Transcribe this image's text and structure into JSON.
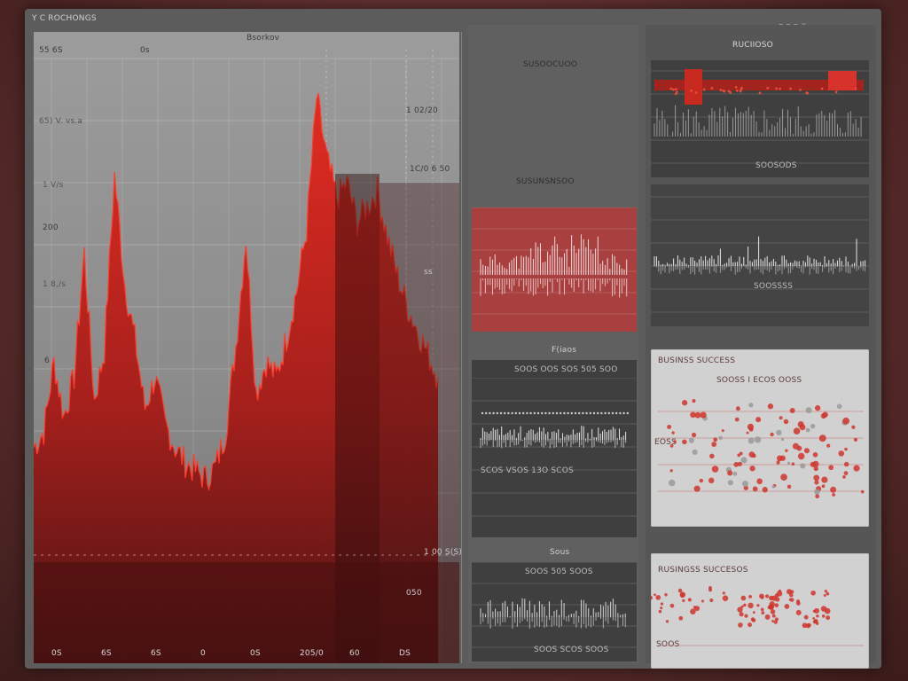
{
  "window": {
    "title": "Y C ROCHONGS",
    "tabs": [
      "Bsorkov",
      "Rucilnso"
    ]
  },
  "main_chart": {
    "left_labels": [
      "55 6S",
      "0s",
      "65) V. vs.a",
      "1 V/s",
      "200",
      "1 8,/s",
      "6"
    ],
    "right_labels": [
      "1 02/20",
      "1C/0 6 50",
      "ss",
      "1 00 S(S)",
      "050"
    ],
    "bottom_labels": [
      "0S",
      "6S",
      "6S",
      "0",
      "0S",
      "205/0",
      "60",
      "DS"
    ]
  },
  "chart_data": {
    "type": "area",
    "title": "Bsorkov",
    "xlabel": "",
    "ylabel": "",
    "x": [
      0,
      1,
      2,
      3,
      4,
      5,
      6,
      7,
      8,
      9,
      10,
      11,
      12,
      13,
      14,
      15,
      16,
      17,
      18,
      19,
      20,
      21,
      22,
      23,
      24,
      25,
      26,
      27,
      28,
      29,
      30,
      31,
      32,
      33,
      34,
      35,
      36,
      37,
      38,
      39,
      40
    ],
    "values": [
      30,
      34,
      52,
      38,
      48,
      80,
      42,
      55,
      100,
      72,
      58,
      40,
      48,
      36,
      30,
      26,
      24,
      22,
      25,
      34,
      56,
      84,
      44,
      52,
      48,
      58,
      70,
      86,
      120,
      104,
      94,
      98,
      88,
      92,
      96,
      84,
      74,
      66,
      60,
      54,
      48
    ],
    "ylim": [
      0,
      130
    ],
    "series_colors": [
      "#d1251c",
      "#7a1616"
    ]
  },
  "center_panels": {
    "top_title": "SUSOOCUOO",
    "mid_title": "SUSUNSNSOO",
    "p1_title": "F(iaos",
    "p1_header": "SOOS OOS SOS 505 SOO",
    "p1_footer": "SCOS VSOS 13O SCOS",
    "p2_title": "Sous",
    "p2_header": "SOOS 505 SOOS",
    "p2_footer": "SOOS SCOS SOOS"
  },
  "right_panels": {
    "top_title": "RUCIIOSO",
    "top_sub": "SOOSODS",
    "mid_sub": "SOOSSSS",
    "card1_title": "BUSINSS SUCCESS",
    "card1_sub": "SOOSS I ECOS OOSS",
    "card1_axis": "EOSS",
    "card2_title": "RUSINGSS SUCCESOS",
    "card2_axis": "SOOS"
  },
  "colors": {
    "accent": "#d1251c",
    "dark_red": "#6e1414",
    "panel": "#5c5c5c"
  }
}
